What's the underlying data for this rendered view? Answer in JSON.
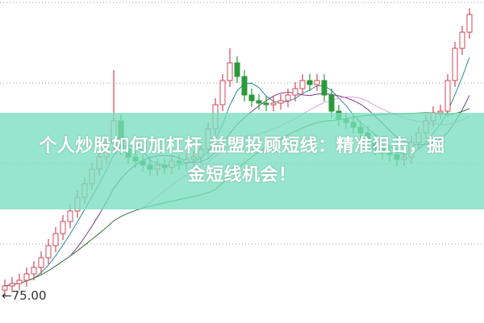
{
  "headline": {
    "line1": "个人炒股如何加杠杆 益盟投顾短线：精准狙击，掘",
    "line2": "金短线机会！"
  },
  "colors": {
    "up": "#d0485a",
    "down": "#2a9a3a",
    "banner": "#96e6cc",
    "ma5": "#2a8c96",
    "ma10": "#7a3a8a",
    "ma20": "#e49ae4",
    "ma30": "#3a7a3a"
  },
  "chart_data": {
    "type": "candlestick",
    "title": "",
    "price_marker": "←75.00",
    "price_marker_value": 75.0,
    "grid": "dotted horizontal",
    "moving_averages": [
      5,
      10,
      20,
      30
    ],
    "open": [
      75.8,
      76.3,
      76.6,
      77.0,
      77.8,
      78.6,
      79.8,
      81.3,
      82.8,
      84.3,
      85.6,
      87.3,
      89.0,
      90.8,
      92.3,
      94.0,
      96.8,
      93.3,
      92.3,
      91.8,
      91.3,
      90.8,
      91.3,
      91.0,
      91.8,
      91.6,
      92.0,
      92.3,
      93.3,
      95.8,
      98.8,
      101.8,
      104.0,
      102.3,
      100.0,
      99.3,
      99.0,
      98.8,
      99.0,
      99.3,
      100.0,
      100.8,
      101.8,
      101.3,
      101.8,
      100.0,
      98.0,
      97.0,
      96.6,
      96.0,
      95.3,
      94.3,
      93.3,
      92.8,
      92.6,
      92.0,
      92.3,
      94.1,
      95.3,
      96.8,
      97.8,
      98.0,
      101.8,
      105.8,
      107.8
    ],
    "high": [
      77.1,
      77.4,
      77.8,
      78.6,
      79.4,
      80.6,
      82.1,
      83.6,
      85.1,
      86.4,
      88.1,
      89.8,
      91.6,
      93.1,
      94.8,
      103.1,
      97.6,
      94.1,
      93.1,
      92.6,
      92.1,
      92.1,
      92.1,
      92.6,
      92.6,
      92.8,
      93.1,
      94.1,
      96.6,
      99.6,
      102.6,
      105.8,
      104.8,
      103.1,
      100.8,
      100.1,
      99.8,
      99.8,
      100.1,
      100.8,
      101.6,
      102.6,
      102.6,
      102.6,
      102.6,
      100.8,
      98.8,
      97.8,
      97.4,
      96.8,
      96.1,
      95.1,
      94.1,
      93.6,
      93.4,
      93.1,
      94.9,
      96.1,
      97.6,
      98.6,
      98.8,
      102.6,
      106.6,
      108.6,
      110.8
    ],
    "low": [
      75.0,
      75.5,
      75.8,
      76.2,
      77.0,
      77.8,
      79.0,
      80.5,
      82.0,
      83.5,
      84.8,
      86.5,
      88.2,
      90.0,
      91.5,
      93.2,
      92.5,
      91.5,
      91.0,
      90.5,
      90.0,
      90.0,
      90.2,
      90.2,
      90.8,
      90.8,
      91.2,
      91.5,
      92.5,
      95.0,
      98.0,
      101.0,
      101.5,
      99.2,
      98.5,
      98.2,
      98.0,
      98.0,
      98.2,
      98.5,
      99.2,
      100.0,
      100.5,
      100.5,
      99.2,
      97.2,
      96.2,
      95.8,
      95.2,
      94.5,
      93.5,
      92.5,
      92.0,
      91.8,
      91.2,
      91.2,
      91.5,
      93.3,
      94.5,
      96.0,
      97.0,
      97.2,
      101.0,
      105.0,
      107.0
    ],
    "close": [
      76.3,
      76.6,
      77.0,
      77.8,
      78.6,
      79.8,
      81.3,
      82.8,
      84.3,
      85.6,
      87.3,
      89.0,
      90.8,
      92.3,
      94.0,
      96.8,
      93.3,
      92.3,
      91.8,
      91.3,
      90.8,
      91.3,
      91.0,
      91.8,
      91.6,
      92.0,
      92.3,
      93.3,
      95.8,
      98.8,
      101.8,
      104.0,
      102.3,
      100.0,
      99.3,
      99.0,
      98.8,
      99.0,
      99.3,
      100.0,
      100.8,
      101.8,
      101.3,
      101.8,
      100.0,
      98.0,
      97.0,
      96.6,
      96.0,
      95.3,
      94.3,
      93.3,
      92.8,
      92.6,
      92.0,
      92.3,
      94.1,
      95.3,
      96.8,
      97.8,
      98.0,
      101.8,
      105.8,
      107.8,
      110.0
    ]
  }
}
